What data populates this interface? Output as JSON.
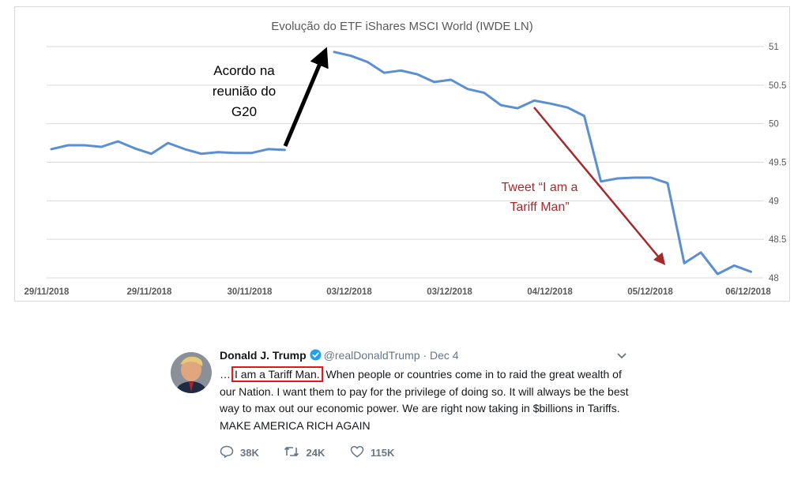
{
  "chart_data": {
    "type": "line",
    "title": "Evolução do ETF iShares MSCI World (IWDE LN)",
    "xlabel": "",
    "ylabel": "",
    "ylim": [
      48,
      51
    ],
    "yticks": [
      "48",
      "48.5",
      "49",
      "49.5",
      "50",
      "50.5",
      "51"
    ],
    "x_tick_labels": [
      "29/11/2018",
      "29/11/2018",
      "30/11/2018",
      "03/12/2018",
      "03/12/2018",
      "04/12/2018",
      "05/12/2018",
      "06/12/2018"
    ],
    "grid": true,
    "series": [
      {
        "values": [
          49.67,
          49.72,
          49.72,
          49.7,
          49.77,
          49.68,
          49.61,
          49.75,
          49.67,
          49.61,
          49.63,
          49.62,
          49.62,
          49.67,
          49.66
        ]
      },
      {
        "values": [
          50.93,
          50.88,
          50.8,
          50.66,
          50.69,
          50.64,
          50.54,
          50.57,
          50.45,
          50.4,
          50.24,
          50.2,
          50.3,
          50.26,
          50.21,
          50.1,
          49.25,
          49.29,
          49.3,
          49.3,
          49.23,
          48.19,
          48.33,
          48.05,
          48.16,
          48.08
        ]
      }
    ],
    "annotations": [
      {
        "text_lines": [
          "Acordo na",
          "reunião do",
          "G20"
        ],
        "color": "#000000"
      },
      {
        "text_lines": [
          "Tweet “I am a",
          "Tariff Man”"
        ],
        "color": "#a52a2a"
      }
    ],
    "colors": {
      "line": "#5b8fcf",
      "grid": "#d9d9d9",
      "text": "#595959",
      "arrow_black": "#000000",
      "arrow_red": "#a52a2a"
    }
  },
  "tweet": {
    "name": "Donald J. Trump",
    "handle": "@realDonaldTrump",
    "date": "· Dec 4",
    "text_prefix": "…",
    "highlight": "I am a Tariff Man.",
    "text_rest": " When people or countries come in to raid the great wealth of our Nation. I want them to pay for the privilege of doing so. It will always be the best way to max out our economic power. We are right now taking in $billions in Tariffs. MAKE AMERICA RICH AGAIN",
    "replies": "38K",
    "retweets": "24K",
    "likes": "115K",
    "icons": [
      "verified-badge-icon",
      "chevron-down-icon",
      "reply-icon",
      "retweet-icon",
      "like-icon"
    ],
    "colors": {
      "highlight_box": "#e8161b",
      "verified": "#1da1f2",
      "muted": "#657786"
    }
  }
}
